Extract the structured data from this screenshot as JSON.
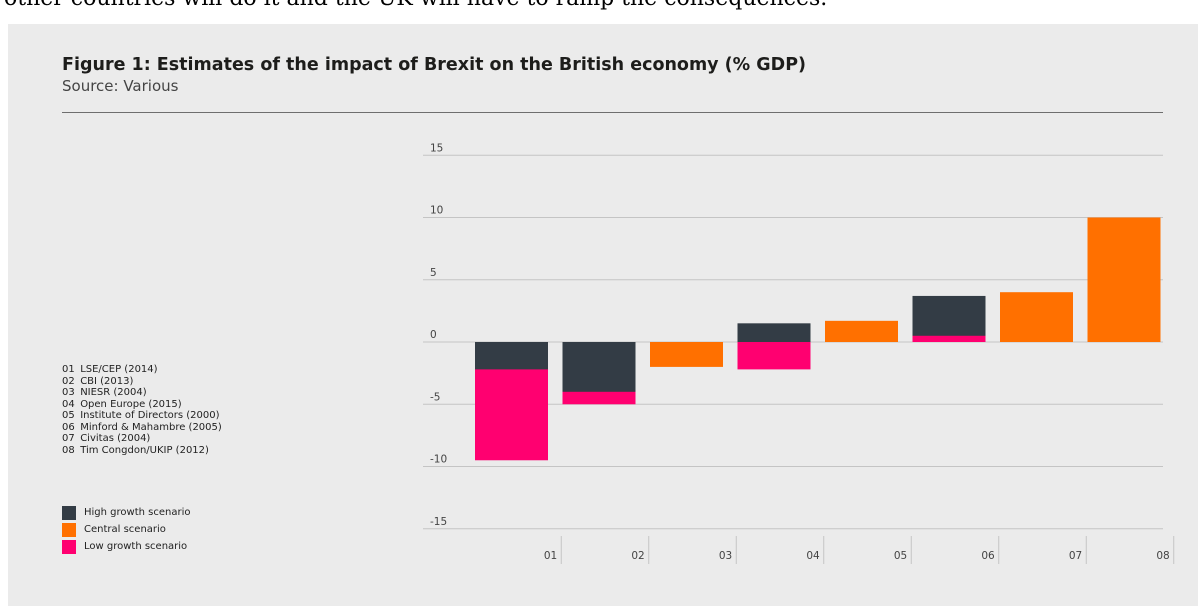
{
  "page_text": "other countries will do it and the UK will have to ramp the consequences.",
  "figure": {
    "title": "Figure 1: Estimates of the impact of Brexit on the British economy (% GDP)",
    "subtitle": "Source: Various"
  },
  "studies": [
    {
      "num": "01",
      "label": "LSE/CEP (2014)"
    },
    {
      "num": "02",
      "label": "CBI (2013)"
    },
    {
      "num": "03",
      "label": "NIESR (2004)"
    },
    {
      "num": "04",
      "label": "Open Europe (2015)"
    },
    {
      "num": "05",
      "label": "Institute of Directors (2000)"
    },
    {
      "num": "06",
      "label": "Minford & Mahambre (2005)"
    },
    {
      "num": "07",
      "label": "Civitas (2004)"
    },
    {
      "num": "08",
      "label": "Tim Congdon/UKIP (2012)"
    }
  ],
  "colors": {
    "high": "#333c45",
    "central": "#ff7000",
    "low": "#ff0070",
    "grid": "#c4c4c4",
    "panel": "#ebebeb"
  },
  "chart_data": {
    "type": "bar",
    "categories": [
      "01",
      "02",
      "03",
      "04",
      "05",
      "06",
      "07",
      "08"
    ],
    "series": [
      {
        "name": "High growth scenario",
        "color_key": "high",
        "values": [
          -2.2,
          -4.0,
          null,
          1.5,
          null,
          3.7,
          null,
          null
        ]
      },
      {
        "name": "Central scenario",
        "color_key": "central",
        "values": [
          null,
          null,
          -2.0,
          null,
          1.7,
          null,
          4.0,
          10.0
        ]
      },
      {
        "name": "Low growth scenario",
        "color_key": "low",
        "values": [
          -9.5,
          -5.0,
          null,
          -2.2,
          null,
          0.5,
          null,
          null
        ]
      }
    ],
    "yticks": [
      15,
      10,
      5,
      0,
      -5,
      -10,
      -15
    ],
    "ylim": [
      -15,
      15
    ],
    "grid": true,
    "legend_position": "bottom-left"
  }
}
